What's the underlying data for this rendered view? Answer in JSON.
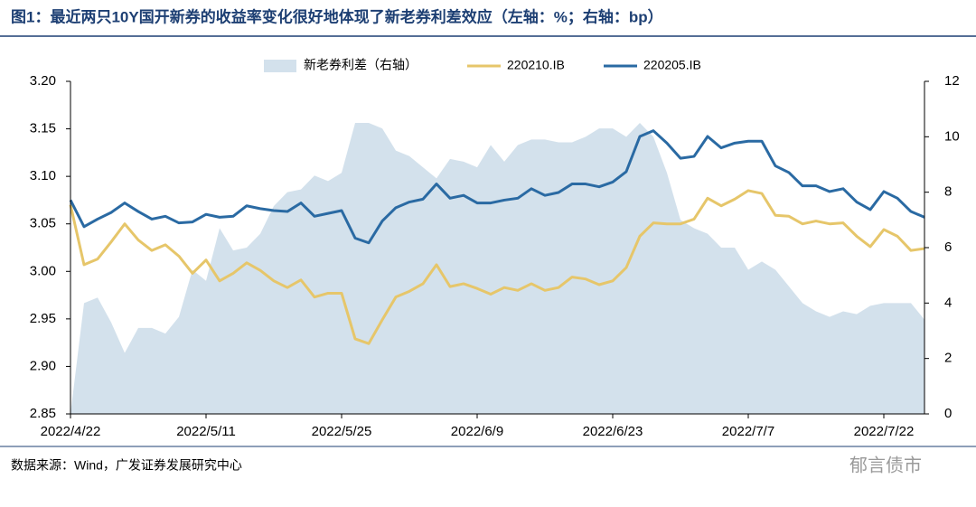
{
  "chart_data": {
    "type": "line",
    "title": "图1：最近两只10Y国开新券的收益率变化很好地体现了新老券利差效应（左轴：%；右轴：bp）",
    "source": "数据来源：Wind，广发证券发展研究中心",
    "watermark": "郁言债市",
    "categories": [
      "2022/4/22",
      null,
      null,
      null,
      null,
      null,
      null,
      null,
      null,
      null,
      "2022/5/11",
      null,
      null,
      null,
      null,
      null,
      null,
      null,
      null,
      null,
      "2022/5/25",
      null,
      null,
      null,
      null,
      null,
      null,
      null,
      null,
      null,
      "2022/6/9",
      null,
      null,
      null,
      null,
      null,
      null,
      null,
      null,
      null,
      "2022/6/23",
      null,
      null,
      null,
      null,
      null,
      null,
      null,
      null,
      null,
      "2022/7/7",
      null,
      null,
      null,
      null,
      null,
      null,
      null,
      null,
      null,
      "2022/7/22",
      null,
      null,
      null
    ],
    "series": [
      {
        "name": "新老券利差（右轴）",
        "type": "area",
        "axis": "y2",
        "color": "#d3e1ec",
        "values": [
          0,
          4.0,
          4.2,
          3.3,
          2.2,
          3.1,
          3.1,
          2.9,
          3.5,
          5.2,
          4.8,
          6.7,
          5.9,
          6.0,
          6.5,
          7.5,
          8.0,
          8.1,
          8.6,
          8.4,
          8.7,
          10.5,
          10.5,
          10.3,
          9.5,
          9.3,
          8.9,
          8.5,
          9.2,
          9.1,
          8.9,
          9.7,
          9.1,
          9.7,
          9.9,
          9.9,
          9.8,
          9.8,
          10.0,
          10.3,
          10.3,
          10.0,
          10.5,
          10.0,
          8.7,
          7.0,
          6.7,
          6.5,
          6.0,
          6.0,
          5.2,
          5.5,
          5.2,
          4.6,
          4.0,
          3.7,
          3.5,
          3.7,
          3.6,
          3.9,
          4.0,
          4.0,
          4.0,
          3.4
        ]
      },
      {
        "name": "220210.IB",
        "type": "line",
        "color": "#e6c66a",
        "values": [
          3.07,
          3.007,
          3.013,
          3.031,
          3.05,
          3.033,
          3.022,
          3.028,
          3.016,
          2.998,
          3.012,
          2.99,
          2.998,
          3.009,
          3.001,
          2.99,
          2.983,
          2.991,
          2.973,
          2.977,
          2.977,
          2.929,
          2.924,
          2.949,
          2.973,
          2.979,
          2.987,
          3.007,
          2.984,
          2.987,
          2.982,
          2.976,
          2.983,
          2.98,
          2.987,
          2.98,
          2.983,
          2.994,
          2.992,
          2.986,
          2.99,
          3.004,
          3.037,
          3.051,
          3.05,
          3.05,
          3.055,
          3.077,
          3.069,
          3.076,
          3.085,
          3.082,
          3.059,
          3.058,
          3.05,
          3.053,
          3.05,
          3.051,
          3.037,
          3.026,
          3.044,
          3.037,
          3.022,
          3.024
        ]
      },
      {
        "name": "220205.IB",
        "type": "line",
        "color": "#2a6aa3",
        "values": [
          3.075,
          3.047,
          3.055,
          3.062,
          3.072,
          3.063,
          3.055,
          3.058,
          3.051,
          3.052,
          3.06,
          3.057,
          3.058,
          3.069,
          3.066,
          3.064,
          3.063,
          3.072,
          3.058,
          3.061,
          3.064,
          3.035,
          3.03,
          3.053,
          3.067,
          3.073,
          3.076,
          3.092,
          3.077,
          3.08,
          3.072,
          3.072,
          3.075,
          3.077,
          3.087,
          3.08,
          3.083,
          3.092,
          3.092,
          3.089,
          3.094,
          3.105,
          3.142,
          3.148,
          3.135,
          3.119,
          3.121,
          3.142,
          3.13,
          3.135,
          3.137,
          3.137,
          3.111,
          3.104,
          3.09,
          3.09,
          3.084,
          3.087,
          3.073,
          3.065,
          3.084,
          3.077,
          3.063,
          3.057
        ]
      }
    ],
    "ylim": [
      2.85,
      3.2
    ],
    "yticks": [
      2.85,
      {
        "value": 2.9,
        "label": "2.90"
      },
      2.95,
      {
        "value": 3.0,
        "label": "3.00"
      },
      3.05,
      {
        "value": 3.1,
        "label": "3.10"
      },
      3.15,
      {
        "value": 3.2,
        "label": "3.20"
      }
    ],
    "y2lim": [
      0,
      12
    ],
    "y2ticks": [
      0,
      2,
      4,
      6,
      8,
      10,
      12
    ],
    "legend": "top",
    "grid": false
  }
}
